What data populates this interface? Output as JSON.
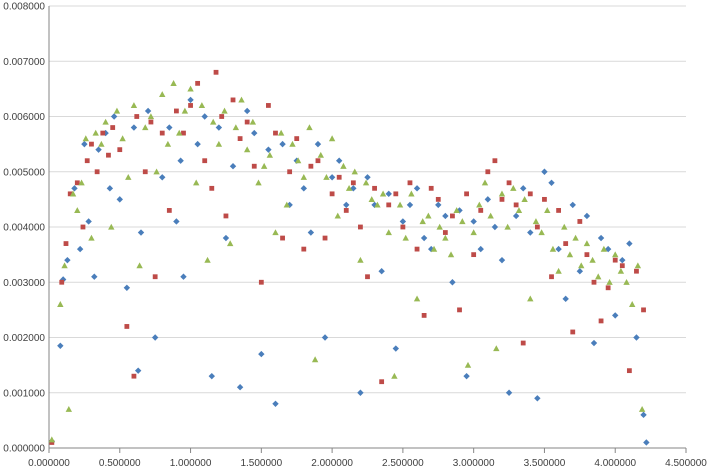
{
  "chart_data": {
    "type": "scatter",
    "title": "",
    "xlabel": "",
    "ylabel": "",
    "xlim": [
      0,
      4.5
    ],
    "ylim": [
      0,
      0.008
    ],
    "x_ticks": [
      "0.000000",
      "0.500000",
      "1.000000",
      "1.500000",
      "2.000000",
      "2.500000",
      "3.000000",
      "3.500000",
      "4.000000",
      "4.500000"
    ],
    "y_ticks": [
      "0.000000",
      "0.001000",
      "0.002000",
      "0.003000",
      "0.004000",
      "0.005000",
      "0.006000",
      "0.007000",
      "0.008000"
    ],
    "grid": {
      "horizontal": true,
      "vertical": false
    },
    "legend": "none",
    "series": [
      {
        "marker": "diamond",
        "color": "#4a7ebb",
        "points": [
          [
            0.02,
            0.00012
          ],
          [
            0.08,
            0.00185
          ],
          [
            0.1,
            0.00305
          ],
          [
            0.13,
            0.0034
          ],
          [
            0.18,
            0.0047
          ],
          [
            0.22,
            0.0036
          ],
          [
            0.25,
            0.0055
          ],
          [
            0.28,
            0.0041
          ],
          [
            0.32,
            0.0031
          ],
          [
            0.35,
            0.0054
          ],
          [
            0.4,
            0.0057
          ],
          [
            0.43,
            0.0047
          ],
          [
            0.46,
            0.006
          ],
          [
            0.5,
            0.0045
          ],
          [
            0.55,
            0.0029
          ],
          [
            0.6,
            0.0058
          ],
          [
            0.63,
            0.0014
          ],
          [
            0.65,
            0.0039
          ],
          [
            0.7,
            0.0061
          ],
          [
            0.75,
            0.002
          ],
          [
            0.8,
            0.0049
          ],
          [
            0.85,
            0.0058
          ],
          [
            0.9,
            0.0041
          ],
          [
            0.93,
            0.0052
          ],
          [
            0.95,
            0.0031
          ],
          [
            1.0,
            0.0063
          ],
          [
            1.05,
            0.0055
          ],
          [
            1.1,
            0.006
          ],
          [
            1.15,
            0.0013
          ],
          [
            1.2,
            0.0058
          ],
          [
            1.25,
            0.0038
          ],
          [
            1.3,
            0.0051
          ],
          [
            1.35,
            0.0011
          ],
          [
            1.4,
            0.0061
          ],
          [
            1.45,
            0.0057
          ],
          [
            1.5,
            0.0017
          ],
          [
            1.55,
            0.0054
          ],
          [
            1.6,
            0.0008
          ],
          [
            1.65,
            0.0055
          ],
          [
            1.7,
            0.0044
          ],
          [
            1.75,
            0.0052
          ],
          [
            1.8,
            0.0047
          ],
          [
            1.85,
            0.0039
          ],
          [
            1.9,
            0.0055
          ],
          [
            1.95,
            0.002
          ],
          [
            2.0,
            0.0049
          ],
          [
            2.05,
            0.0052
          ],
          [
            2.1,
            0.0044
          ],
          [
            2.15,
            0.0047
          ],
          [
            2.2,
            0.001
          ],
          [
            2.25,
            0.0049
          ],
          [
            2.3,
            0.0044
          ],
          [
            2.35,
            0.0032
          ],
          [
            2.4,
            0.0046
          ],
          [
            2.45,
            0.0018
          ],
          [
            2.5,
            0.0041
          ],
          [
            2.55,
            0.0044
          ],
          [
            2.6,
            0.0047
          ],
          [
            2.65,
            0.0038
          ],
          [
            2.7,
            0.0036
          ],
          [
            2.75,
            0.0044
          ],
          [
            2.8,
            0.0042
          ],
          [
            2.85,
            0.003
          ],
          [
            2.9,
            0.0043
          ],
          [
            2.95,
            0.0013
          ],
          [
            3.0,
            0.0041
          ],
          [
            3.05,
            0.0036
          ],
          [
            3.1,
            0.0045
          ],
          [
            3.15,
            0.004
          ],
          [
            3.2,
            0.0034
          ],
          [
            3.25,
            0.001
          ],
          [
            3.3,
            0.0042
          ],
          [
            3.35,
            0.0047
          ],
          [
            3.4,
            0.0039
          ],
          [
            3.45,
            0.0009
          ],
          [
            3.5,
            0.005
          ],
          [
            3.55,
            0.0048
          ],
          [
            3.6,
            0.0036
          ],
          [
            3.65,
            0.0027
          ],
          [
            3.7,
            0.0044
          ],
          [
            3.75,
            0.0032
          ],
          [
            3.8,
            0.0042
          ],
          [
            3.85,
            0.0019
          ],
          [
            3.9,
            0.0038
          ],
          [
            3.95,
            0.0036
          ],
          [
            4.0,
            0.0024
          ],
          [
            4.05,
            0.0034
          ],
          [
            4.1,
            0.0037
          ],
          [
            4.15,
            0.002
          ],
          [
            4.2,
            0.0006
          ],
          [
            4.22,
            0.0001
          ]
        ]
      },
      {
        "marker": "square",
        "color": "#be4b48",
        "points": [
          [
            0.02,
            0.0001
          ],
          [
            0.09,
            0.003
          ],
          [
            0.12,
            0.0037
          ],
          [
            0.15,
            0.0046
          ],
          [
            0.2,
            0.0048
          ],
          [
            0.24,
            0.004
          ],
          [
            0.27,
            0.0052
          ],
          [
            0.3,
            0.0055
          ],
          [
            0.34,
            0.005
          ],
          [
            0.38,
            0.0057
          ],
          [
            0.42,
            0.0053
          ],
          [
            0.45,
            0.0058
          ],
          [
            0.5,
            0.0054
          ],
          [
            0.55,
            0.0022
          ],
          [
            0.6,
            0.0013
          ],
          [
            0.62,
            0.006
          ],
          [
            0.68,
            0.005
          ],
          [
            0.72,
            0.0059
          ],
          [
            0.75,
            0.0031
          ],
          [
            0.8,
            0.0057
          ],
          [
            0.85,
            0.0043
          ],
          [
            0.9,
            0.0061
          ],
          [
            0.95,
            0.0057
          ],
          [
            1.0,
            0.0062
          ],
          [
            1.05,
            0.0066
          ],
          [
            1.1,
            0.0052
          ],
          [
            1.15,
            0.0047
          ],
          [
            1.18,
            0.0068
          ],
          [
            1.22,
            0.006
          ],
          [
            1.25,
            0.0042
          ],
          [
            1.3,
            0.0063
          ],
          [
            1.35,
            0.0056
          ],
          [
            1.4,
            0.0059
          ],
          [
            1.45,
            0.0051
          ],
          [
            1.5,
            0.003
          ],
          [
            1.55,
            0.0062
          ],
          [
            1.6,
            0.0057
          ],
          [
            1.65,
            0.0038
          ],
          [
            1.7,
            0.005
          ],
          [
            1.75,
            0.0056
          ],
          [
            1.8,
            0.0036
          ],
          [
            1.85,
            0.0051
          ],
          [
            1.9,
            0.0052
          ],
          [
            1.95,
            0.0038
          ],
          [
            2.0,
            0.0046
          ],
          [
            2.05,
            0.0049
          ],
          [
            2.1,
            0.0043
          ],
          [
            2.15,
            0.0048
          ],
          [
            2.2,
            0.004
          ],
          [
            2.25,
            0.0031
          ],
          [
            2.3,
            0.0047
          ],
          [
            2.35,
            0.0012
          ],
          [
            2.4,
            0.0044
          ],
          [
            2.45,
            0.0046
          ],
          [
            2.5,
            0.004
          ],
          [
            2.55,
            0.0048
          ],
          [
            2.6,
            0.0036
          ],
          [
            2.65,
            0.0024
          ],
          [
            2.7,
            0.0047
          ],
          [
            2.75,
            0.0045
          ],
          [
            2.8,
            0.0039
          ],
          [
            2.85,
            0.0042
          ],
          [
            2.9,
            0.0025
          ],
          [
            2.95,
            0.0046
          ],
          [
            3.0,
            0.0035
          ],
          [
            3.05,
            0.0043
          ],
          [
            3.1,
            0.005
          ],
          [
            3.15,
            0.0052
          ],
          [
            3.2,
            0.0045
          ],
          [
            3.25,
            0.0048
          ],
          [
            3.3,
            0.0044
          ],
          [
            3.35,
            0.0019
          ],
          [
            3.4,
            0.0046
          ],
          [
            3.45,
            0.004
          ],
          [
            3.5,
            0.0045
          ],
          [
            3.55,
            0.0031
          ],
          [
            3.6,
            0.0043
          ],
          [
            3.65,
            0.0037
          ],
          [
            3.7,
            0.0021
          ],
          [
            3.75,
            0.0041
          ],
          [
            3.8,
            0.0035
          ],
          [
            3.85,
            0.003
          ],
          [
            3.9,
            0.0023
          ],
          [
            3.95,
            0.0029
          ],
          [
            4.0,
            0.0034
          ],
          [
            4.05,
            0.0033
          ],
          [
            4.1,
            0.0014
          ],
          [
            4.15,
            0.0032
          ],
          [
            4.2,
            0.0025
          ]
        ]
      },
      {
        "marker": "triangle",
        "color": "#98b954",
        "points": [
          [
            0.02,
            0.00015
          ],
          [
            0.08,
            0.0026
          ],
          [
            0.11,
            0.0033
          ],
          [
            0.14,
            0.0007
          ],
          [
            0.17,
            0.0046
          ],
          [
            0.2,
            0.0043
          ],
          [
            0.23,
            0.0048
          ],
          [
            0.26,
            0.0056
          ],
          [
            0.3,
            0.0038
          ],
          [
            0.33,
            0.0057
          ],
          [
            0.37,
            0.0055
          ],
          [
            0.4,
            0.0059
          ],
          [
            0.44,
            0.004
          ],
          [
            0.48,
            0.0061
          ],
          [
            0.52,
            0.0056
          ],
          [
            0.56,
            0.0049
          ],
          [
            0.6,
            0.0062
          ],
          [
            0.64,
            0.0033
          ],
          [
            0.68,
            0.0058
          ],
          [
            0.72,
            0.006
          ],
          [
            0.76,
            0.005
          ],
          [
            0.8,
            0.0064
          ],
          [
            0.84,
            0.0055
          ],
          [
            0.88,
            0.0066
          ],
          [
            0.92,
            0.0057
          ],
          [
            0.96,
            0.0061
          ],
          [
            1.0,
            0.0065
          ],
          [
            1.04,
            0.0048
          ],
          [
            1.08,
            0.0062
          ],
          [
            1.12,
            0.0034
          ],
          [
            1.16,
            0.0059
          ],
          [
            1.2,
            0.0055
          ],
          [
            1.24,
            0.0061
          ],
          [
            1.28,
            0.0037
          ],
          [
            1.32,
            0.0058
          ],
          [
            1.36,
            0.0063
          ],
          [
            1.4,
            0.0054
          ],
          [
            1.44,
            0.0059
          ],
          [
            1.48,
            0.0048
          ],
          [
            1.52,
            0.0051
          ],
          [
            1.56,
            0.0053
          ],
          [
            1.6,
            0.0039
          ],
          [
            1.64,
            0.0057
          ],
          [
            1.68,
            0.0044
          ],
          [
            1.72,
            0.0055
          ],
          [
            1.76,
            0.0052
          ],
          [
            1.8,
            0.0049
          ],
          [
            1.84,
            0.0058
          ],
          [
            1.88,
            0.0016
          ],
          [
            1.92,
            0.0053
          ],
          [
            1.96,
            0.0049
          ],
          [
            2.0,
            0.0056
          ],
          [
            2.04,
            0.0042
          ],
          [
            2.08,
            0.0051
          ],
          [
            2.12,
            0.0047
          ],
          [
            2.16,
            0.005
          ],
          [
            2.2,
            0.0034
          ],
          [
            2.24,
            0.0048
          ],
          [
            2.28,
            0.0045
          ],
          [
            2.32,
            0.0044
          ],
          [
            2.36,
            0.0046
          ],
          [
            2.4,
            0.0039
          ],
          [
            2.44,
            0.0013
          ],
          [
            2.48,
            0.0044
          ],
          [
            2.52,
            0.0038
          ],
          [
            2.56,
            0.0046
          ],
          [
            2.6,
            0.0027
          ],
          [
            2.64,
            0.0041
          ],
          [
            2.68,
            0.0042
          ],
          [
            2.72,
            0.0036
          ],
          [
            2.76,
            0.004
          ],
          [
            2.8,
            0.0038
          ],
          [
            2.84,
            0.0035
          ],
          [
            2.88,
            0.0043
          ],
          [
            2.92,
            0.0041
          ],
          [
            2.96,
            0.0015
          ],
          [
            3.0,
            0.0039
          ],
          [
            3.04,
            0.0044
          ],
          [
            3.08,
            0.0048
          ],
          [
            3.12,
            0.0042
          ],
          [
            3.16,
            0.0018
          ],
          [
            3.2,
            0.0046
          ],
          [
            3.24,
            0.004
          ],
          [
            3.28,
            0.0047
          ],
          [
            3.32,
            0.0043
          ],
          [
            3.36,
            0.0045
          ],
          [
            3.4,
            0.0027
          ],
          [
            3.44,
            0.0041
          ],
          [
            3.48,
            0.0039
          ],
          [
            3.52,
            0.0043
          ],
          [
            3.56,
            0.0036
          ],
          [
            3.6,
            0.0032
          ],
          [
            3.64,
            0.004
          ],
          [
            3.68,
            0.0035
          ],
          [
            3.72,
            0.0038
          ],
          [
            3.76,
            0.0033
          ],
          [
            3.8,
            0.0037
          ],
          [
            3.84,
            0.0034
          ],
          [
            3.88,
            0.0031
          ],
          [
            3.92,
            0.0036
          ],
          [
            3.96,
            0.003
          ],
          [
            4.0,
            0.0035
          ],
          [
            4.04,
            0.0032
          ],
          [
            4.08,
            0.003
          ],
          [
            4.12,
            0.0026
          ],
          [
            4.16,
            0.0033
          ],
          [
            4.19,
            0.0007
          ]
        ]
      }
    ]
  }
}
